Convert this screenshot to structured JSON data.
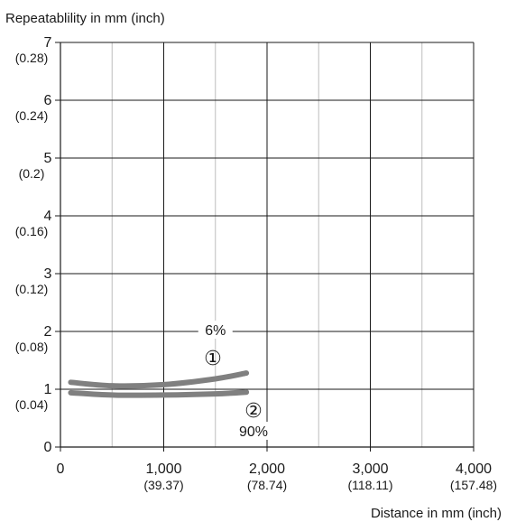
{
  "chart_data": {
    "type": "line",
    "ylabel": "Repeatablility in mm (inch)",
    "xlabel": "Distance in mm (inch)",
    "xlim": [
      0,
      4000
    ],
    "ylim": [
      0,
      7
    ],
    "grid": true,
    "x_ticks": [
      {
        "value": 0,
        "label": "0",
        "sub": ""
      },
      {
        "value": 1000,
        "label": "1,000",
        "sub": "(39.37)"
      },
      {
        "value": 2000,
        "label": "2,000",
        "sub": "(78.74)"
      },
      {
        "value": 3000,
        "label": "3,000",
        "sub": "(118.11)"
      },
      {
        "value": 4000,
        "label": "4,000",
        "sub": "(157.48)"
      }
    ],
    "y_ticks": [
      {
        "value": 0,
        "label": "0",
        "sub": ""
      },
      {
        "value": 1,
        "label": "1",
        "sub": "(0.04)"
      },
      {
        "value": 2,
        "label": "2",
        "sub": "(0.08)"
      },
      {
        "value": 3,
        "label": "3",
        "sub": "(0.12)"
      },
      {
        "value": 4,
        "label": "4",
        "sub": "(0.16)"
      },
      {
        "value": 5,
        "label": "5",
        "sub": "(0.2)"
      },
      {
        "value": 6,
        "label": "6",
        "sub": "(0.24)"
      },
      {
        "value": 7,
        "label": "7",
        "sub": "(0.28)"
      }
    ],
    "series": [
      {
        "marker": "①",
        "reflectance": "6%",
        "color": "#808080",
        "x": [
          100,
          500,
          1000,
          1500,
          1800
        ],
        "y": [
          1.12,
          1.06,
          1.08,
          1.18,
          1.28
        ]
      },
      {
        "marker": "②",
        "reflectance": "90%",
        "color": "#808080",
        "x": [
          100,
          500,
          1000,
          1500,
          1800
        ],
        "y": [
          0.94,
          0.9,
          0.9,
          0.92,
          0.95
        ]
      }
    ]
  }
}
